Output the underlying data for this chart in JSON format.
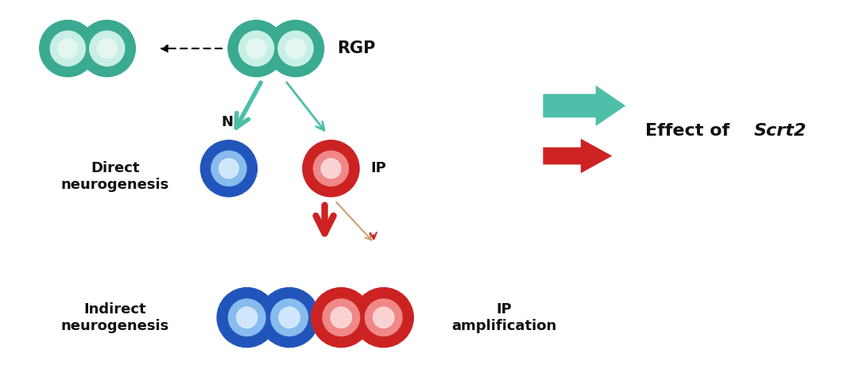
{
  "bg_color": "#ffffff",
  "teal": "#4dbfa8",
  "teal_cell_outer": "#3aaa90",
  "teal_cell_inner": "#c8efe5",
  "teal_cell_white": "#e8f8f4",
  "blue_cell_outer": "#2255bb",
  "blue_cell_inner": "#88bbee",
  "blue_cell_white": "#ddeeff",
  "red_cell_outer": "#cc2222",
  "red_cell_inner": "#f08888",
  "red_cell_white": "#fce0e0",
  "red_arrow": "#cc2222",
  "brown_line": "#c8a070",
  "text_color": "#111111",
  "rgp_label": "RGP",
  "n_label": "N",
  "ip_label": "IP",
  "direct_label": "Direct\nneurogenesis",
  "indirect_label": "Indirect\nneurogenesis",
  "amp_label": "IP\namplification",
  "effect_text": "Effect of ",
  "effect_italic": "Scrt2"
}
